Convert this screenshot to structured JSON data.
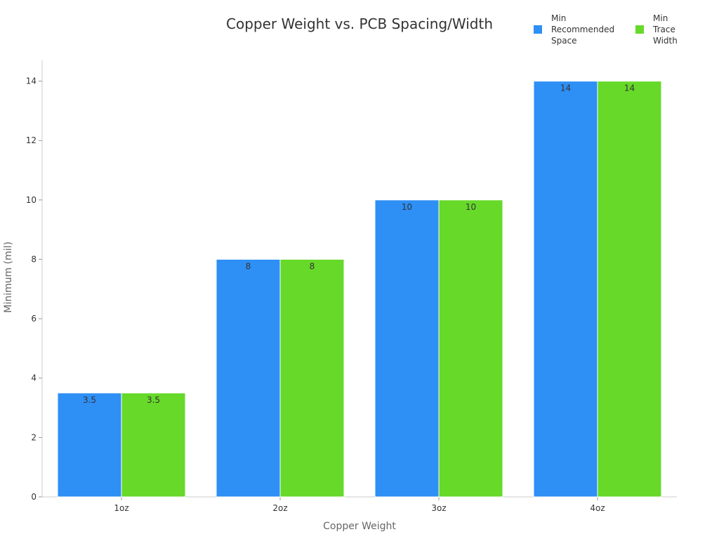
{
  "chart_data": {
    "type": "bar",
    "title": "Copper Weight vs. PCB Spacing/Width",
    "xlabel": "Copper Weight",
    "ylabel": "Minimum (mil)",
    "categories": [
      "1oz",
      "2oz",
      "3oz",
      "4oz"
    ],
    "series": [
      {
        "name": "Min Recommended Space",
        "values": [
          3.5,
          8,
          10,
          14
        ],
        "color": "#2e8ff5"
      },
      {
        "name": "Min Trace Width",
        "values": [
          3.5,
          8,
          10,
          14
        ],
        "color": "#66d929"
      }
    ],
    "data_labels": [
      [
        "3.5",
        "8",
        "10",
        "14"
      ],
      [
        "3.5",
        "8",
        "10",
        "14"
      ]
    ],
    "ylim": [
      0,
      14.7
    ],
    "yticks": [
      "0",
      "2",
      "4",
      "6",
      "8",
      "10",
      "12",
      "14"
    ],
    "grid": false,
    "legend_position": "top-right"
  }
}
